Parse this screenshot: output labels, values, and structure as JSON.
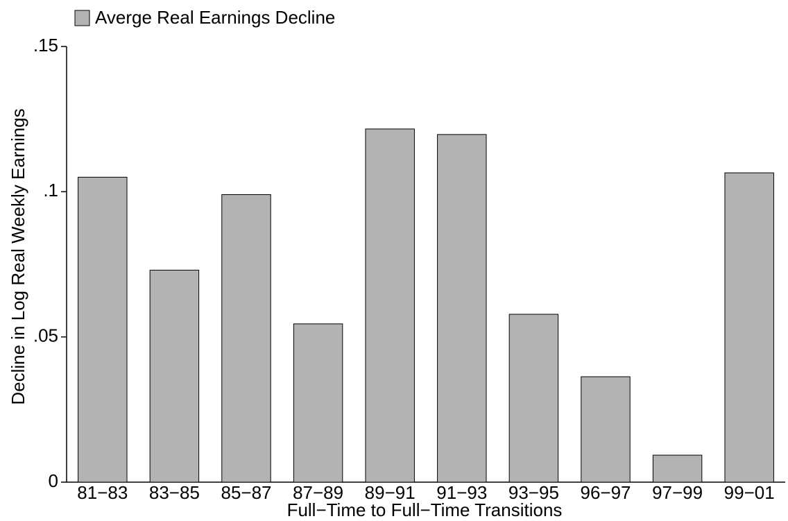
{
  "chart_data": {
    "type": "bar",
    "legend": "Averge Real Earnings Decline",
    "xlabel": "Full−Time to Full−Time Transitions",
    "ylabel": "Decline in Log Real Weekly Earnings",
    "categories": [
      "81−83",
      "83−85",
      "85−87",
      "87−89",
      "89−91",
      "91−93",
      "93−95",
      "96−97",
      "97−99",
      "99−01"
    ],
    "values": [
      0.105,
      0.073,
      0.099,
      0.0545,
      0.1216,
      0.1197,
      0.0578,
      0.0363,
      0.0093,
      0.1065
    ],
    "color": "#b3b3b3",
    "ylim": [
      0,
      0.15
    ],
    "yticks": [
      0,
      {
        "value": 0.05,
        "label": ".05"
      },
      {
        "value": 0.1,
        "label": ".1"
      },
      {
        "value": 0.15,
        "label": ".15"
      }
    ],
    "grid": false
  }
}
